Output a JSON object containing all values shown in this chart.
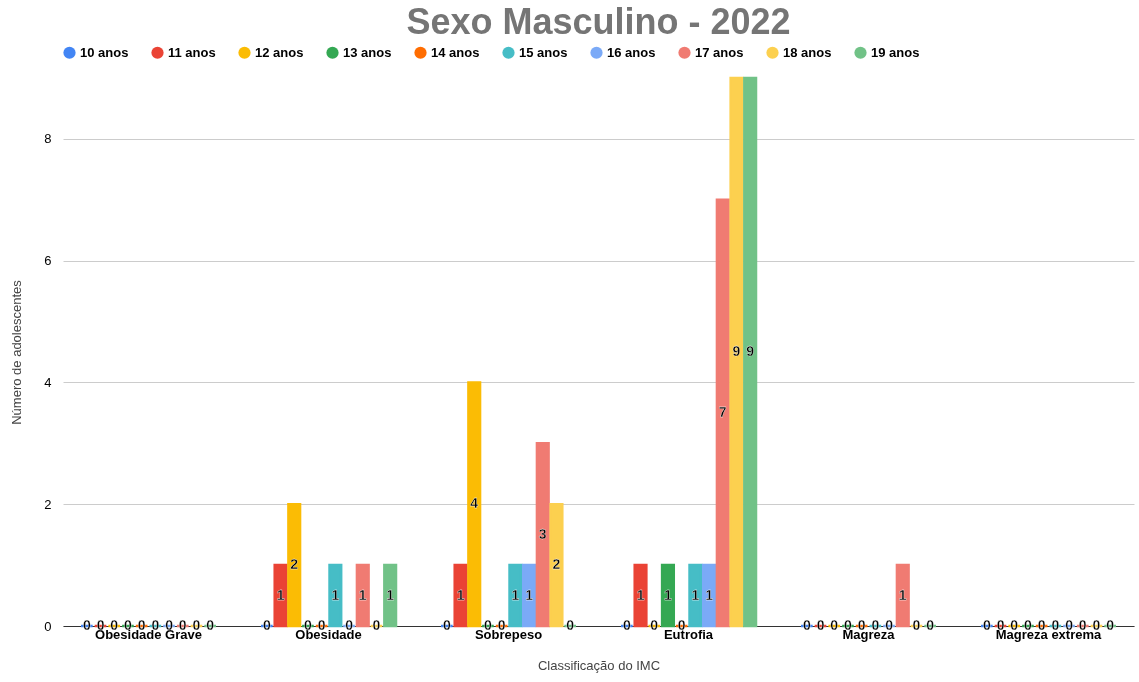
{
  "chart_data": {
    "type": "bar",
    "title": "Sexo Masculino - 2022",
    "xlabel": "Classificação do IMC",
    "ylabel": "Número de adolescentes",
    "categories": [
      "Obesidade Grave",
      "Obesidade",
      "Sobrepeso",
      "Eutrofia",
      "Magreza",
      "Magreza extrema"
    ],
    "series": [
      {
        "name": "10 anos",
        "color": "#4285f4",
        "values": [
          0,
          0,
          0,
          0,
          0,
          0
        ]
      },
      {
        "name": "11 anos",
        "color": "#ea4335",
        "values": [
          0,
          1,
          1,
          1,
          0,
          0
        ]
      },
      {
        "name": "12 anos",
        "color": "#fbbc04",
        "values": [
          0,
          2,
          4,
          0,
          0,
          0
        ]
      },
      {
        "name": "13 anos",
        "color": "#34a853",
        "values": [
          0,
          0,
          0,
          1,
          0,
          0
        ]
      },
      {
        "name": "14 anos",
        "color": "#ff6d01",
        "values": [
          0,
          0,
          0,
          0,
          0,
          0
        ]
      },
      {
        "name": "15 anos",
        "color": "#46bdc6",
        "values": [
          0,
          1,
          1,
          1,
          0,
          0
        ]
      },
      {
        "name": "16 anos",
        "color": "#7baaf7",
        "values": [
          0,
          0,
          1,
          1,
          0,
          0
        ]
      },
      {
        "name": "17 anos",
        "color": "#f07b72",
        "values": [
          0,
          1,
          3,
          7,
          1,
          0
        ]
      },
      {
        "name": "18 anos",
        "color": "#fcd04f",
        "values": [
          0,
          0,
          2,
          9,
          0,
          0
        ]
      },
      {
        "name": "19 anos",
        "color": "#71c287",
        "values": [
          0,
          1,
          0,
          9,
          0,
          0
        ]
      }
    ],
    "ylim": [
      0,
      9
    ],
    "yticks": [
      0,
      2,
      4,
      6,
      8
    ],
    "grid": "y",
    "legend": "top",
    "data_labels": true
  }
}
